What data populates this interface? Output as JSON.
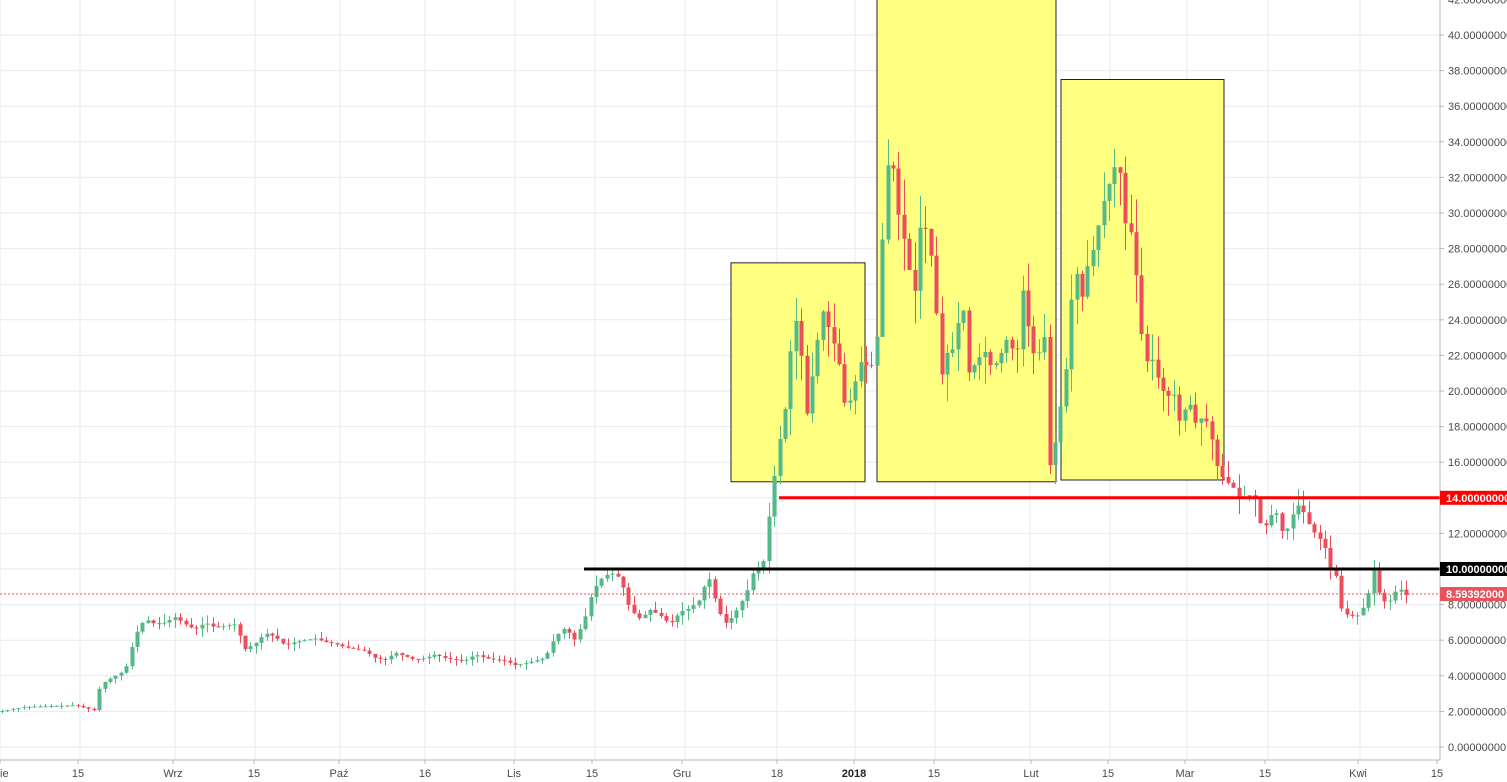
{
  "chart_data": {
    "type": "candlestick",
    "title": "",
    "xlabel": "",
    "ylabel": "",
    "ylim": [
      -0.2,
      42.2
    ],
    "y_ticks": [
      "42.00000000",
      "40.00000000",
      "38.00000000",
      "36.00000000",
      "34.00000000",
      "32.00000000",
      "30.00000000",
      "28.00000000",
      "26.00000000",
      "24.00000000",
      "22.00000000",
      "20.00000000",
      "18.00000000",
      "16.00000000",
      "14.00000000",
      "12.00000000",
      "10.00000000",
      "8.00000000",
      "6.00000000",
      "4.00000000",
      "2.00000000",
      "0.00000000"
    ],
    "x_ticks": [
      {
        "label": "ie",
        "bold": false
      },
      {
        "label": "15",
        "bold": false
      },
      {
        "label": "Wrz",
        "bold": false
      },
      {
        "label": "15",
        "bold": false
      },
      {
        "label": "Paź",
        "bold": false
      },
      {
        "label": "16",
        "bold": false
      },
      {
        "label": "Lis",
        "bold": false
      },
      {
        "label": "15",
        "bold": false
      },
      {
        "label": "Gru",
        "bold": false
      },
      {
        "label": "18",
        "bold": false
      },
      {
        "label": "2018",
        "bold": true
      },
      {
        "label": "15",
        "bold": false
      },
      {
        "label": "Lut",
        "bold": false
      },
      {
        "label": "15",
        "bold": false
      },
      {
        "label": "Mar",
        "bold": false
      },
      {
        "label": "15",
        "bold": false
      },
      {
        "label": "Kwi",
        "bold": false
      },
      {
        "label": "15",
        "bold": false
      }
    ],
    "grid": true,
    "levels": [
      {
        "value": 14.0,
        "label": "14.00000000",
        "color": "#ff0000"
      },
      {
        "value": 10.0,
        "label": "10.00000000",
        "color": "#000000"
      }
    ],
    "last_price": {
      "value": 8.59392,
      "label": "8.59392000",
      "color": "#e8535d"
    },
    "close_path": [
      [
        0,
        2.0
      ],
      [
        25,
        2.25
      ],
      [
        50,
        2.3
      ],
      [
        75,
        2.35
      ],
      [
        95,
        2.05
      ],
      [
        100,
        3.5
      ],
      [
        112,
        3.9
      ],
      [
        125,
        4.3
      ],
      [
        135,
        6.3
      ],
      [
        145,
        7.2
      ],
      [
        155,
        6.9
      ],
      [
        165,
        7.0
      ],
      [
        175,
        7.3
      ],
      [
        185,
        6.9
      ],
      [
        195,
        6.6
      ],
      [
        205,
        7.0
      ],
      [
        215,
        6.7
      ],
      [
        225,
        6.8
      ],
      [
        235,
        6.9
      ],
      [
        245,
        5.5
      ],
      [
        255,
        5.8
      ],
      [
        265,
        6.4
      ],
      [
        275,
        6.2
      ],
      [
        285,
        5.7
      ],
      [
        295,
        5.9
      ],
      [
        305,
        6.0
      ],
      [
        315,
        6.1
      ],
      [
        325,
        5.9
      ],
      [
        335,
        5.8
      ],
      [
        345,
        5.6
      ],
      [
        355,
        5.5
      ],
      [
        365,
        5.4
      ],
      [
        375,
        5.0
      ],
      [
        385,
        4.9
      ],
      [
        395,
        5.3
      ],
      [
        405,
        5.1
      ],
      [
        415,
        4.9
      ],
      [
        425,
        5.0
      ],
      [
        435,
        5.2
      ],
      [
        445,
        5.0
      ],
      [
        455,
        4.9
      ],
      [
        465,
        4.85
      ],
      [
        475,
        5.2
      ],
      [
        485,
        5.0
      ],
      [
        495,
        4.9
      ],
      [
        505,
        4.85
      ],
      [
        515,
        4.6
      ],
      [
        525,
        4.7
      ],
      [
        535,
        4.85
      ],
      [
        545,
        5.0
      ],
      [
        555,
        6.2
      ],
      [
        565,
        6.7
      ],
      [
        575,
        6.0
      ],
      [
        585,
        7.3
      ],
      [
        592,
        8.7
      ],
      [
        600,
        9.4
      ],
      [
        610,
        9.8
      ],
      [
        620,
        9.5
      ],
      [
        630,
        7.7
      ],
      [
        640,
        7.2
      ],
      [
        650,
        7.7
      ],
      [
        660,
        7.4
      ],
      [
        670,
        6.9
      ],
      [
        680,
        7.6
      ],
      [
        690,
        7.8
      ],
      [
        700,
        8.3
      ],
      [
        708,
        9.7
      ],
      [
        716,
        8.1
      ],
      [
        724,
        6.9
      ],
      [
        732,
        7.3
      ],
      [
        740,
        8.0
      ],
      [
        748,
        8.9
      ],
      [
        755,
        10.2
      ],
      [
        762,
        9.8
      ],
      [
        770,
        13.5
      ],
      [
        778,
        16.8
      ],
      [
        786,
        19.3
      ],
      [
        792,
        23.3
      ],
      [
        798,
        24.3
      ],
      [
        806,
        18.5
      ],
      [
        814,
        21.6
      ],
      [
        822,
        24.6
      ],
      [
        830,
        23.3
      ],
      [
        838,
        21.9
      ],
      [
        846,
        18.7
      ],
      [
        854,
        20.3
      ],
      [
        862,
        21.9
      ],
      [
        870,
        21.0
      ],
      [
        878,
        23.4
      ],
      [
        884,
        30.7
      ],
      [
        890,
        34.0
      ],
      [
        898,
        30.0
      ],
      [
        906,
        28.0
      ],
      [
        914,
        25.0
      ],
      [
        918,
        29.2
      ],
      [
        926,
        29.1
      ],
      [
        934,
        26.6
      ],
      [
        940,
        20.5
      ],
      [
        946,
        22.1
      ],
      [
        954,
        22.4
      ],
      [
        962,
        25.4
      ],
      [
        968,
        21.0
      ],
      [
        976,
        21.6
      ],
      [
        984,
        22.3
      ],
      [
        992,
        21.2
      ],
      [
        1000,
        22.0
      ],
      [
        1008,
        23.1
      ],
      [
        1016,
        21.6
      ],
      [
        1024,
        26.5
      ],
      [
        1030,
        22.2
      ],
      [
        1038,
        22.0
      ],
      [
        1044,
        23.3
      ],
      [
        1050,
        15.3
      ],
      [
        1058,
        18.2
      ],
      [
        1066,
        21.3
      ],
      [
        1074,
        27.2
      ],
      [
        1082,
        25.3
      ],
      [
        1088,
        27.2
      ],
      [
        1094,
        28.1
      ],
      [
        1102,
        30.4
      ],
      [
        1110,
        31.8
      ],
      [
        1118,
        33.2
      ],
      [
        1126,
        29.0
      ],
      [
        1132,
        28.9
      ],
      [
        1138,
        25.3
      ],
      [
        1144,
        21.6
      ],
      [
        1152,
        21.8
      ],
      [
        1160,
        20.3
      ],
      [
        1166,
        19.7
      ],
      [
        1174,
        19.8
      ],
      [
        1180,
        18.1
      ],
      [
        1188,
        19.6
      ],
      [
        1196,
        18.1
      ],
      [
        1204,
        18.7
      ],
      [
        1212,
        17.2
      ],
      [
        1218,
        15.5
      ],
      [
        1226,
        14.9
      ],
      [
        1232,
        14.7
      ],
      [
        1240,
        13.8
      ],
      [
        1248,
        14.2
      ],
      [
        1256,
        13.9
      ],
      [
        1262,
        12.0
      ],
      [
        1270,
        13.0
      ],
      [
        1276,
        13.2
      ],
      [
        1282,
        12.1
      ],
      [
        1288,
        12.3
      ],
      [
        1294,
        13.3
      ],
      [
        1300,
        13.7
      ],
      [
        1306,
        12.8
      ],
      [
        1312,
        12.2
      ],
      [
        1318,
        11.8
      ],
      [
        1324,
        11.4
      ],
      [
        1330,
        10.1
      ],
      [
        1336,
        9.6
      ],
      [
        1342,
        7.5
      ],
      [
        1350,
        7.4
      ],
      [
        1356,
        7.3
      ],
      [
        1362,
        7.7
      ],
      [
        1368,
        8.6
      ],
      [
        1374,
        10.0
      ],
      [
        1380,
        8.4
      ],
      [
        1386,
        8.1
      ],
      [
        1392,
        8.3
      ],
      [
        1398,
        9.1
      ],
      [
        1404,
        8.5
      ],
      [
        1410,
        8.59
      ]
    ],
    "x_domain": [
      0,
      1440
    ]
  },
  "overlays": {
    "highlight_color": "#ffff80",
    "highlight_boxes": [
      {
        "name": "highlight-box-left-shoulder",
        "x_from": 731,
        "x_to": 865,
        "y_top": 27.2,
        "y_bottom": 14.9
      },
      {
        "name": "highlight-box-head",
        "x_from": 877,
        "x_to": 1056,
        "y_top": 42.0,
        "y_bottom": 14.9
      },
      {
        "name": "highlight-box-right-shoulder",
        "x_from": 1061,
        "x_to": 1224,
        "y_top": 37.5,
        "y_bottom": 15.0
      }
    ],
    "level_lines": [
      {
        "name": "resistance-line-14",
        "value": 14.0,
        "x_from": 779,
        "x_to": 1440,
        "color": "#ff0000"
      },
      {
        "name": "support-line-10",
        "value": 10.0,
        "x_from": 584,
        "x_to": 1440,
        "color": "#000000"
      }
    ]
  },
  "colors": {
    "up": "#53b987",
    "down": "#eb4d5c",
    "grid": "#e6ebf0",
    "axis_text": "#4a4a4a"
  }
}
